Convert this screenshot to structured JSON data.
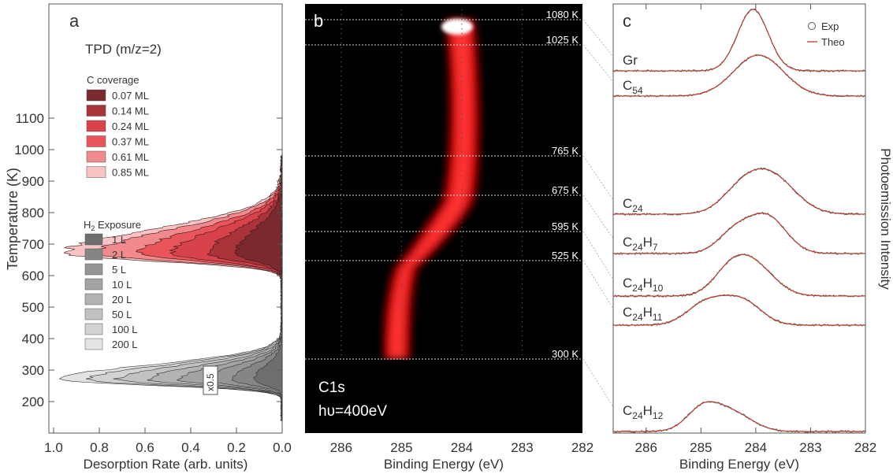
{
  "panel_a": {
    "letter": "a",
    "title": "TPD (m/z=2)",
    "ylabel": "Temperature (K)",
    "xlabel": "Desorption Rate (arb. units)",
    "yticks": [
      "200",
      "300",
      "400",
      "500",
      "600",
      "700",
      "800",
      "900",
      "1000",
      "1100"
    ],
    "xticks": [
      "1.0",
      "0.8",
      "0.6",
      "0.4",
      "0.2",
      "0.0"
    ],
    "c_legend_title": "C coverage",
    "c_legend": [
      "0.07 ML",
      "0.14 ML",
      "0.24 ML",
      "0.37 ML",
      "0.61 ML",
      "0.85 ML"
    ],
    "c_colors": [
      "#7a2a2e",
      "#a8343a",
      "#d8434b",
      "#e8565c",
      "#f08a8d",
      "#f7c3c4"
    ],
    "h_legend_title": "H",
    "h_legend_sub": "2",
    "h_legend_title_rest": " Exposure",
    "h_legend": [
      "1 L",
      "2 L",
      "5 L",
      "10 L",
      "20 L",
      "50 L",
      "100 L",
      "200 L"
    ],
    "h_colors": [
      "#6e6e6e",
      "#858585",
      "#969696",
      "#a3a3a3",
      "#b3b3b3",
      "#c2c2c2",
      "#d2d2d2",
      "#e3e3e3"
    ],
    "scale_badge": "x0.5"
  },
  "panel_b": {
    "letter": "b",
    "xlabel": "Binding Energy (eV)",
    "xticks": [
      "286",
      "285",
      "284",
      "283",
      "282"
    ],
    "temp_labels": [
      "1080 K",
      "1025 K",
      "765 K",
      "675 K",
      "595 K",
      "525 K",
      "300 K"
    ],
    "line1": "C1s",
    "line2": "hυ=400eV"
  },
  "panel_c": {
    "letter": "c",
    "xlabel": "Binding Energy (eV)",
    "ylabel": "Photoemission Intensity",
    "xticks": [
      "286",
      "285",
      "284",
      "283",
      "282"
    ],
    "legend_exp": "Exp",
    "legend_theo": "Theo",
    "spectra": [
      {
        "main": "Gr",
        "sub": "",
        "tail": "",
        "tail_sub": ""
      },
      {
        "main": "C",
        "sub": "54",
        "tail": "",
        "tail_sub": ""
      },
      {
        "main": "C",
        "sub": "24",
        "tail": "",
        "tail_sub": ""
      },
      {
        "main": "C",
        "sub": "24",
        "tail": "H",
        "tail_sub": "7"
      },
      {
        "main": "C",
        "sub": "24",
        "tail": "H",
        "tail_sub": "10"
      },
      {
        "main": "C",
        "sub": "24",
        "tail": "H",
        "tail_sub": "11"
      },
      {
        "main": "C",
        "sub": "24",
        "tail": "H",
        "tail_sub": "12"
      }
    ]
  }
}
